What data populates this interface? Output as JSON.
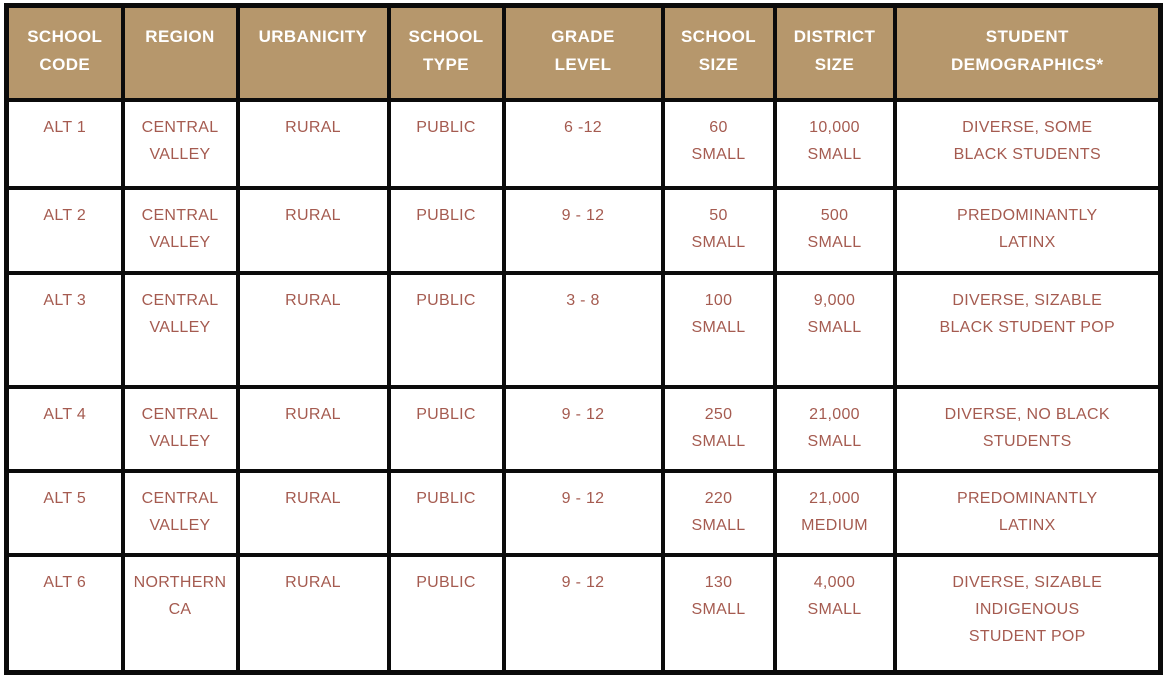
{
  "colors": {
    "header_background": "#b6976c",
    "header_text": "#ffffff",
    "body_text": "#a55b50",
    "grid_border": "#0b0b0b",
    "cell_background": "#ffffff"
  },
  "table": {
    "headers": [
      "SCHOOL\nCODE",
      "REGION",
      "URBANICITY",
      "SCHOOL\nTYPE",
      "GRADE\nLEVEL",
      "SCHOOL\nSIZE",
      "DISTRICT\nSIZE",
      "STUDENT\nDEMOGRAPHICS*"
    ],
    "rows": [
      [
        "ALT 1",
        "CENTRAL\nVALLEY",
        "RURAL",
        "PUBLIC",
        "6 -12",
        "60\nSMALL",
        "10,000\nSMALL",
        "DIVERSE, SOME\nBLACK STUDENTS"
      ],
      [
        "ALT 2",
        "CENTRAL\nVALLEY",
        "RURAL",
        "PUBLIC",
        "9 - 12",
        "50\nSMALL",
        "500\nSMALL",
        "PREDOMINANTLY\nLATINX"
      ],
      [
        "ALT 3",
        "CENTRAL\nVALLEY",
        "RURAL",
        "PUBLIC",
        "3 - 8",
        "100\nSMALL",
        "9,000\nSMALL",
        "DIVERSE, SIZABLE\nBLACK STUDENT POP"
      ],
      [
        "ALT 4",
        "CENTRAL\nVALLEY",
        "RURAL",
        "PUBLIC",
        "9 - 12",
        "250\nSMALL",
        "21,000\nSMALL",
        "DIVERSE, NO BLACK\nSTUDENTS"
      ],
      [
        "ALT 5",
        "CENTRAL\nVALLEY",
        "RURAL",
        "PUBLIC",
        "9 - 12",
        "220\nSMALL",
        "21,000\nMEDIUM",
        "PREDOMINANTLY\nLATINX"
      ],
      [
        "ALT 6",
        "NORTHERN\nCA",
        "RURAL",
        "PUBLIC",
        "9 - 12",
        "130\nSMALL",
        "4,000\nSMALL",
        "DIVERSE, SIZABLE\nINDIGENOUS\nSTUDENT POP"
      ]
    ]
  }
}
